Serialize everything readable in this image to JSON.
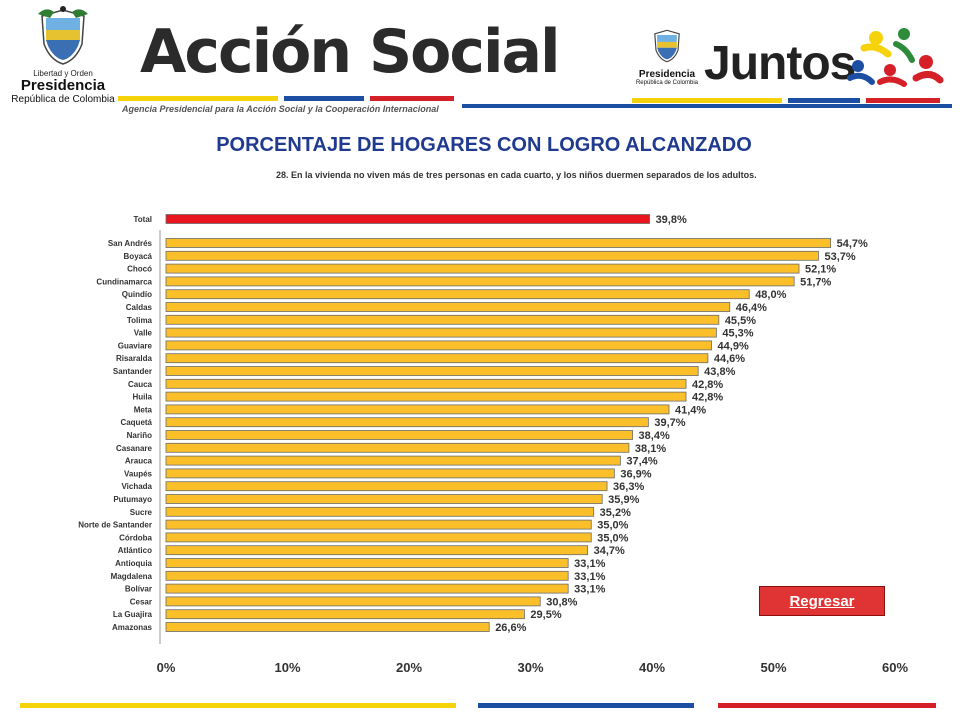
{
  "header": {
    "left_logo": {
      "motto": "Libertad y Orden",
      "title": "Presidencia",
      "subtitle": "República de Colombia"
    },
    "accion_social": {
      "name_first": "Acción",
      "name_second": "Social",
      "tagline": "Agencia Presidencial para la Acción Social y la Cooperación Internacional",
      "stripe_colors": [
        "#f5d20a",
        "#1c4fa3",
        "#d62027"
      ]
    },
    "right_logo": {
      "title": "Presidencia",
      "subtitle": "República de Colombia",
      "program": "Juntos"
    }
  },
  "page_title": "PORCENTAJE DE HOGARES CON LOGRO ALCANZADO",
  "return_button": "Regresar",
  "colors": {
    "title": "#1f3a8f",
    "bar_total": "#e8141e",
    "bar_department": "#fbbf2a",
    "bar_outline": "#6b6b6b",
    "yellow": "#f5d20a",
    "blue": "#1c4fa3",
    "red": "#d62027"
  },
  "chart_data": {
    "type": "bar",
    "orientation": "horizontal",
    "title": "28. En la vivienda no viven más de tres personas en cada cuarto, y los niños duermen separados de los adultos.",
    "categories": [
      "Total",
      "San Andrés",
      "Boyacá",
      "Chocó",
      "Cundinamarca",
      "Quindío",
      "Caldas",
      "Tolima",
      "Valle",
      "Guaviare",
      "Risaralda",
      "Santander",
      "Cauca",
      "Huila",
      "Meta",
      "Caquetá",
      "Nariño",
      "Casanare",
      "Arauca",
      "Vaupés",
      "Vichada",
      "Putumayo",
      "Sucre",
      "Norte de Santander",
      "Córdoba",
      "Atlántico",
      "Antioquia",
      "Magdalena",
      "Bolívar",
      "Cesar",
      "La Guajira",
      "Amazonas"
    ],
    "values": [
      39.8,
      54.7,
      53.7,
      52.1,
      51.7,
      48.0,
      46.4,
      45.5,
      45.3,
      44.9,
      44.6,
      43.8,
      42.8,
      42.8,
      41.4,
      39.7,
      38.4,
      38.1,
      37.4,
      36.9,
      36.3,
      35.9,
      35.2,
      35.0,
      35.0,
      34.7,
      33.1,
      33.1,
      33.1,
      30.8,
      29.5,
      26.6
    ],
    "data_labels": [
      "39,8%",
      "54,7%",
      "53,7%",
      "52,1%",
      "51,7%",
      "48,0%",
      "46,4%",
      "45,5%",
      "45,3%",
      "44,9%",
      "44,6%",
      "43,8%",
      "42,8%",
      "42,8%",
      "41,4%",
      "39,7%",
      "38,4%",
      "38,1%",
      "37,4%",
      "36,9%",
      "36,3%",
      "35,9%",
      "35,2%",
      "35,0%",
      "35,0%",
      "34,7%",
      "33,1%",
      "33,1%",
      "33,1%",
      "30,8%",
      "29,5%",
      "26,6%"
    ],
    "highlight_category": "Total",
    "xlim": [
      0,
      60
    ],
    "xticks": [
      0,
      10,
      20,
      30,
      40,
      50,
      60
    ],
    "xtick_labels": [
      "0%",
      "10%",
      "20%",
      "30%",
      "40%",
      "50%",
      "60%"
    ],
    "grid": false,
    "legend": "none"
  }
}
